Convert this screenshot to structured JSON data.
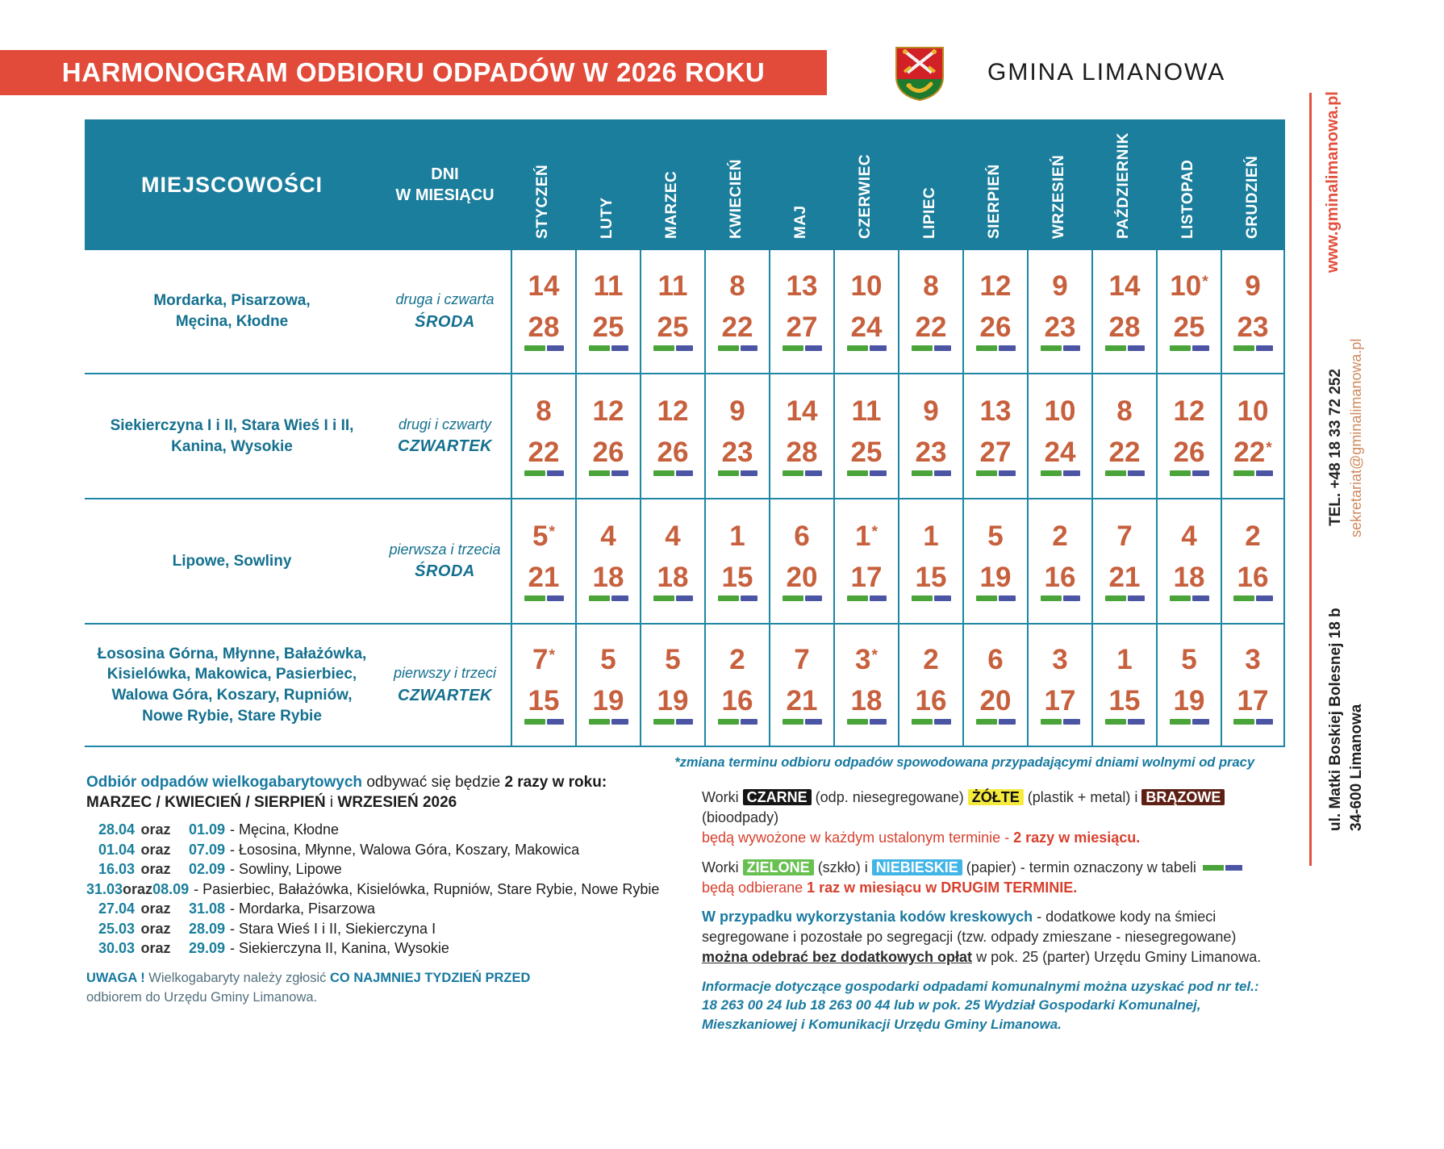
{
  "banner": {
    "title": "HARMONOGRAM ODBIORU ODPADÓW W 2026 ROKU"
  },
  "org": {
    "name": "GMINA LIMANOWA",
    "crest": "limanowa-coat-of-arms"
  },
  "table": {
    "col_places": "MIEJSCOWOŚCI",
    "col_days_line1": "DNI",
    "col_days_line2": "W MIESIĄCU",
    "months": [
      "STYCZEŃ",
      "LUTY",
      "MARZEC",
      "KWIECIEŃ",
      "MAJ",
      "CZERWIEC",
      "LIPIEC",
      "SIERPIEŃ",
      "WRZESIEŃ",
      "PAŹDZIERNIK",
      "LISTOPAD",
      "GRUDZIEŃ"
    ],
    "rows": [
      {
        "places": [
          "Mordarka, Pisarzowa,",
          "Męcina, Kłodne"
        ],
        "days_line1": "druga i czwarta",
        "days_line2": "ŚRODA",
        "dates": [
          [
            "14",
            "28"
          ],
          [
            "11",
            "25"
          ],
          [
            "11",
            "25"
          ],
          [
            "8",
            "22"
          ],
          [
            "13",
            "27"
          ],
          [
            "10",
            "24"
          ],
          [
            "8",
            "22"
          ],
          [
            "12",
            "26"
          ],
          [
            "9",
            "23"
          ],
          [
            "14",
            "28"
          ],
          [
            "10*",
            "25"
          ],
          [
            "9",
            "23"
          ]
        ]
      },
      {
        "places": [
          "Siekierczyna I i II, Stara Wieś I i II,",
          "Kanina, Wysokie"
        ],
        "days_line1": "drugi i czwarty",
        "days_line2": "CZWARTEK",
        "dates": [
          [
            "8",
            "22"
          ],
          [
            "12",
            "26"
          ],
          [
            "12",
            "26"
          ],
          [
            "9",
            "23"
          ],
          [
            "14",
            "28"
          ],
          [
            "11",
            "25"
          ],
          [
            "9",
            "23"
          ],
          [
            "13",
            "27"
          ],
          [
            "10",
            "24"
          ],
          [
            "8",
            "22"
          ],
          [
            "12",
            "26"
          ],
          [
            "10",
            "22*"
          ]
        ]
      },
      {
        "places": [
          "Lipowe, Sowliny"
        ],
        "days_line1": "pierwsza i trzecia",
        "days_line2": "ŚRODA",
        "dates": [
          [
            "5*",
            "21"
          ],
          [
            "4",
            "18"
          ],
          [
            "4",
            "18"
          ],
          [
            "1",
            "15"
          ],
          [
            "6",
            "20"
          ],
          [
            "1*",
            "17"
          ],
          [
            "1",
            "15"
          ],
          [
            "5",
            "19"
          ],
          [
            "2",
            "16"
          ],
          [
            "7",
            "21"
          ],
          [
            "4",
            "18"
          ],
          [
            "2",
            "16"
          ]
        ]
      },
      {
        "places": [
          "Łososina Górna, Młynne, Bałażówka,",
          "Kisielówka, Makowica, Pasierbiec,",
          "Walowa Góra, Koszary, Rupniów,",
          "Nowe Rybie, Stare Rybie"
        ],
        "days_line1": "pierwszy i trzeci",
        "days_line2": "CZWARTEK",
        "dates": [
          [
            "7*",
            "15"
          ],
          [
            "5",
            "19"
          ],
          [
            "5",
            "19"
          ],
          [
            "2",
            "16"
          ],
          [
            "7",
            "21"
          ],
          [
            "3*",
            "18"
          ],
          [
            "2",
            "16"
          ],
          [
            "6",
            "20"
          ],
          [
            "3",
            "17"
          ],
          [
            "1",
            "15"
          ],
          [
            "5",
            "19"
          ],
          [
            "3",
            "17"
          ]
        ]
      }
    ]
  },
  "footnote": "*zmiana terminu odbioru odpadów spowodowana przypadającymi dniami wolnymi od pracy",
  "bulky": {
    "heading_strong": "Odbiór odpadów wielkogabarytowych",
    "heading_mid": " odbywać się będzie ",
    "heading_bold": "2 razy w roku:",
    "heading2_bold1": "MARZEC / KWIECIEŃ / SIERPIEŃ",
    "heading2_mid": " i ",
    "heading2_bold2": "WRZESIEŃ 2026",
    "items": [
      {
        "d1": "28.04",
        "sep": "oraz",
        "d2": "01.09",
        "places": "- Męcina, Kłodne"
      },
      {
        "d1": "01.04",
        "sep": "oraz",
        "d2": "07.09",
        "places": "- Łososina, Młynne, Walowa Góra, Koszary, Makowica"
      },
      {
        "d1": "16.03",
        "sep": "oraz",
        "d2": "02.09",
        "places": "- Sowliny, Lipowe"
      },
      {
        "d1": "31.03",
        "sep": "oraz",
        "d2": "08.09",
        "places": "- Pasierbiec, Bałażówka, Kisielówka, Rupniów, Stare Rybie, Nowe Rybie"
      },
      {
        "d1": "27.04",
        "sep": "oraz",
        "d2": "31.08",
        "places": "- Mordarka, Pisarzowa"
      },
      {
        "d1": "25.03",
        "sep": "oraz",
        "d2": "28.09",
        "places": "- Stara Wieś I i II, Siekierczyna I"
      },
      {
        "d1": "30.03",
        "sep": "oraz",
        "d2": "29.09",
        "places": "- Siekierczyna II, Kanina, Wysokie"
      }
    ],
    "note_warn": "UWAGA !",
    "note_mid1": " Wielkogabaryty należy zgłosić ",
    "note_strong": "CO NAJMNIEJ TYDZIEŃ PRZED",
    "note_mid2": " odbiorem do Urzędu Gminy Limanowa."
  },
  "legend": {
    "p1_w": "Worki ",
    "p1_black_label": "CZARNE",
    "p1_black_desc": " (odp. niesegregowane) ",
    "p1_yellow_label": "ŻÓŁTE",
    "p1_yellow_desc": " (plastik + metal) i ",
    "p1_brown_label": "BRĄZOWE",
    "p1_brown_desc": " (bioodpady)",
    "p1_red": "będą wywożone w każdym ustalonym terminie - ",
    "p1_red_bold": "2 razy w miesiącu.",
    "p2_w": "Worki ",
    "p2_green_label": "ZIELONE",
    "p2_green_desc": " (szkło) i ",
    "p2_blue_label": "NIEBIESKIE",
    "p2_blue_desc": " (papier) - termin oznaczony w tabeli",
    "p2_red": "będą odbierane ",
    "p2_red_bold": "1 raz w miesiącu w DRUGIM TERMINIE",
    "p2_red_end": ".",
    "p3_strong": "W przypadku wykorzystania kodów kreskowych",
    "p3_mid1": " - dodatkowe kody na śmieci segregowane i pozostałe po segregacji (tzw. odpady zmieszane - niesegregowane) ",
    "p3_underline": "można odebrać bez dodatkowych opłat",
    "p3_mid2": " w pok. 25 (parter) Urzędu Gminy Limanowa.",
    "p4": "Informacje dotyczące gospodarki odpadami komunalnymi można uzyskać pod nr tel.: 18 263 00 24 lub 18 263 00 44 lub w pok. 25 Wydział Gospodarki Komunalnej, Mieszkaniowej i Komunikacji Urzędu Gminy Limanowa."
  },
  "sidebar": {
    "website": "www.gminalimanowa.pl",
    "phone": "TEL. +48 18 33 72 252",
    "email": "sekretariat@gminalimanowa.pl",
    "address1": "ul. Matki Boskiej Bolesnej 18 b",
    "address2": "34-600 Limanowa"
  },
  "colors": {
    "banner_red": "#e24a39",
    "header_teal": "#1b7e9c",
    "border_teal": "#1d87a4",
    "text_teal": "#14708f",
    "date_terracotta": "#c7603d",
    "bar_green": "#4aa43a",
    "bar_blue": "#4c55a3",
    "alert_red": "#d8402e",
    "tag_black": "#151515",
    "tag_yellow": "#f6eb3d",
    "tag_brown": "#5e2014",
    "tag_green": "#67c050",
    "tag_blue": "#41b5e6"
  }
}
